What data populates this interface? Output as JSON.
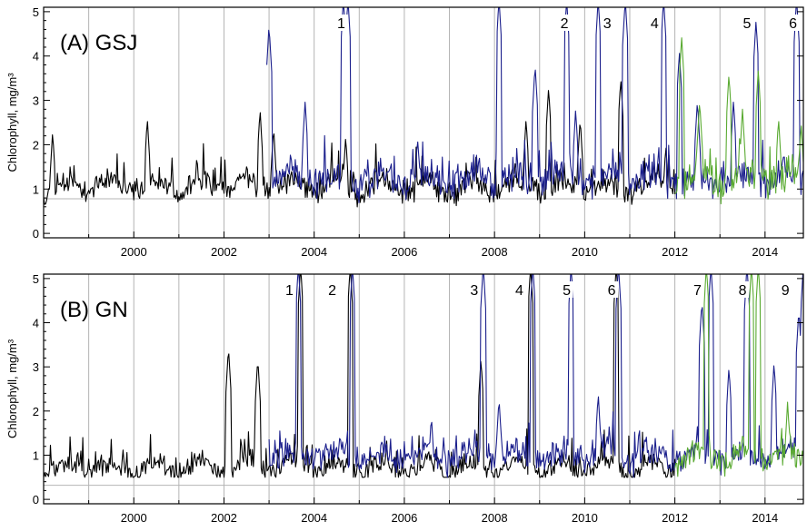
{
  "chart_data": [
    {
      "type": "line",
      "panel": "(A) GSJ",
      "ylabel": "Chlorophyll, mg/m³",
      "xlim": [
        1998.0,
        2014.85
      ],
      "ylim": [
        -0.1,
        5.1
      ],
      "xticks": [
        2000,
        2002,
        2004,
        2006,
        2008,
        2010,
        2012,
        2014
      ],
      "yticks": [
        0,
        1,
        2,
        3,
        4,
        5
      ],
      "vlines": [
        1999,
        2000,
        2001,
        2002,
        2003,
        2004,
        2005,
        2006,
        2007,
        2008,
        2009,
        2010,
        2011,
        2012,
        2013,
        2014
      ],
      "hline": 0.78,
      "events": [
        {
          "label": "1",
          "x": 2004.6
        },
        {
          "label": "2",
          "x": 2009.55
        },
        {
          "label": "3",
          "x": 2010.5
        },
        {
          "label": "4",
          "x": 2011.55
        },
        {
          "label": "5",
          "x": 2013.6
        },
        {
          "label": "6",
          "x": 2014.62
        }
      ],
      "series": [
        {
          "color": "#000000",
          "seed": 11,
          "x_start": 1998.0,
          "x_end": 2012.0,
          "base": 1.05,
          "noise": 0.35,
          "peaks": [
            [
              1998.2,
              2.3
            ],
            [
              2000.3,
              2.6
            ],
            [
              2001.4,
              1.8
            ],
            [
              2002.8,
              2.8
            ],
            [
              2003.1,
              2.4
            ],
            [
              2004.7,
              2.2
            ],
            [
              2008.7,
              2.6
            ],
            [
              2009.2,
              3.3
            ],
            [
              2009.9,
              2.6
            ],
            [
              2010.8,
              3.5
            ],
            [
              2011.8,
              2.0
            ]
          ]
        },
        {
          "color": "#1b1f8c",
          "seed": 23,
          "x_start": 2002.95,
          "x_end": 2014.9,
          "base": 1.25,
          "noise": 0.45,
          "peaks": [
            [
              2003.0,
              4.7
            ],
            [
              2003.8,
              3.0
            ],
            [
              2004.65,
              5.3
            ],
            [
              2004.75,
              5.3
            ],
            [
              2006.3,
              2.1
            ],
            [
              2007.6,
              1.8
            ],
            [
              2008.1,
              5.3
            ],
            [
              2008.9,
              3.8
            ],
            [
              2009.6,
              5.3
            ],
            [
              2009.8,
              2.8
            ],
            [
              2010.3,
              5.3
            ],
            [
              2010.9,
              5.3
            ],
            [
              2011.75,
              5.3
            ],
            [
              2012.1,
              4.1
            ],
            [
              2012.5,
              3.0
            ],
            [
              2013.3,
              3.0
            ],
            [
              2013.8,
              4.8
            ],
            [
              2014.7,
              5.3
            ]
          ]
        },
        {
          "color": "#5aaa32",
          "seed": 37,
          "x_start": 2012.0,
          "x_end": 2014.9,
          "base": 1.25,
          "noise": 0.5,
          "peaks": [
            [
              2012.15,
              4.45
            ],
            [
              2012.55,
              3.0
            ],
            [
              2013.2,
              3.6
            ],
            [
              2013.5,
              2.8
            ],
            [
              2013.85,
              3.7
            ],
            [
              2014.3,
              2.6
            ],
            [
              2014.8,
              2.5
            ]
          ]
        }
      ]
    },
    {
      "type": "line",
      "panel": "(B) GN",
      "ylabel": "Chlorophyll, mg/m³",
      "xlim": [
        1998.0,
        2014.85
      ],
      "ylim": [
        -0.1,
        5.1
      ],
      "xticks": [
        2000,
        2002,
        2004,
        2006,
        2008,
        2010,
        2012,
        2014
      ],
      "yticks": [
        0,
        1,
        2,
        3,
        4,
        5
      ],
      "vlines": [
        1999,
        2000,
        2001,
        2002,
        2003,
        2004,
        2005,
        2006,
        2007,
        2008,
        2009,
        2010,
        2011,
        2012,
        2013,
        2014
      ],
      "hline": 0.32,
      "events": [
        {
          "label": "1",
          "x": 2003.45
        },
        {
          "label": "2",
          "x": 2004.4
        },
        {
          "label": "3",
          "x": 2007.55
        },
        {
          "label": "4",
          "x": 2008.55
        },
        {
          "label": "5",
          "x": 2009.6
        },
        {
          "label": "6",
          "x": 2010.6
        },
        {
          "label": "7",
          "x": 2012.5
        },
        {
          "label": "8",
          "x": 2013.5
        },
        {
          "label": "9",
          "x": 2014.45
        }
      ],
      "series": [
        {
          "color": "#000000",
          "seed": 51,
          "x_start": 1998.0,
          "x_end": 2012.0,
          "base": 0.72,
          "noise": 0.28,
          "peaks": [
            [
              2002.1,
              3.45
            ],
            [
              2002.75,
              3.2
            ],
            [
              2003.7,
              5.3
            ],
            [
              2004.8,
              5.3
            ],
            [
              2007.7,
              3.2
            ],
            [
              2008.8,
              5.3
            ],
            [
              2010.7,
              5.3
            ]
          ]
        },
        {
          "color": "#1b1f8c",
          "seed": 63,
          "x_start": 2003.0,
          "x_end": 2014.9,
          "base": 1.0,
          "noise": 0.4,
          "peaks": [
            [
              2003.65,
              5.3
            ],
            [
              2004.85,
              5.3
            ],
            [
              2006.6,
              1.9
            ],
            [
              2007.75,
              5.3
            ],
            [
              2008.1,
              2.3
            ],
            [
              2008.85,
              5.3
            ],
            [
              2009.7,
              5.3
            ],
            [
              2010.3,
              2.4
            ],
            [
              2010.75,
              5.3
            ],
            [
              2012.6,
              4.5
            ],
            [
              2012.8,
              5.3
            ],
            [
              2013.2,
              3.0
            ],
            [
              2013.6,
              5.3
            ],
            [
              2014.2,
              3.1
            ],
            [
              2014.75,
              4.3
            ],
            [
              2014.85,
              5.3
            ]
          ]
        },
        {
          "color": "#5aaa32",
          "seed": 77,
          "x_start": 2012.0,
          "x_end": 2014.9,
          "base": 0.95,
          "noise": 0.35,
          "peaks": [
            [
              2012.7,
              5.3
            ],
            [
              2013.7,
              5.3
            ],
            [
              2013.85,
              5.3
            ],
            [
              2014.5,
              2.2
            ]
          ]
        }
      ]
    }
  ]
}
